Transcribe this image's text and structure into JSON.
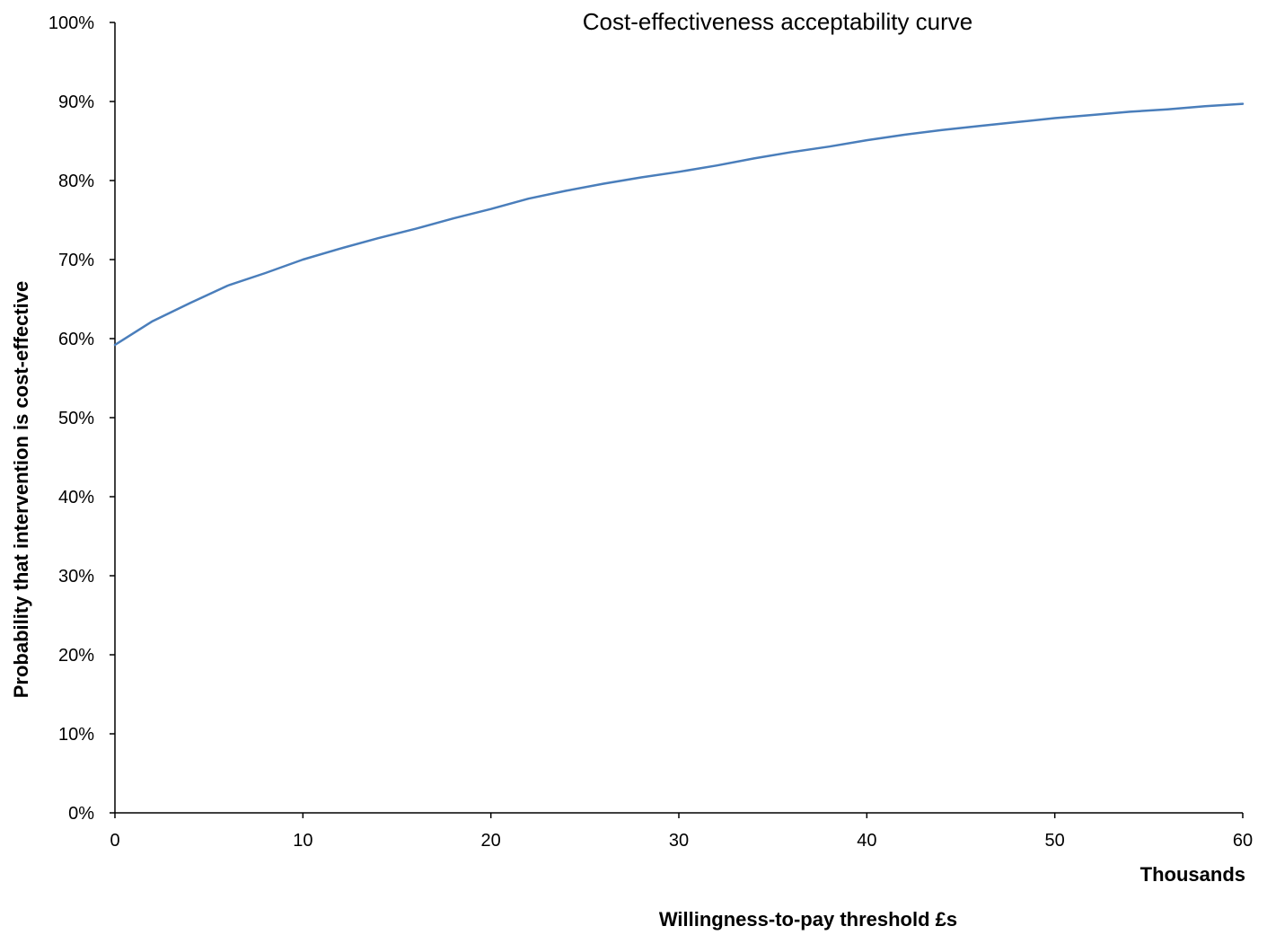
{
  "chart_data": {
    "type": "line",
    "title": "Cost-effectiveness acceptability curve",
    "xlabel": "Willingness-to-pay threshold £s",
    "xunit_label": "Thousands",
    "ylabel": "Probability that intervention is cost-effective",
    "xlim": [
      0,
      60
    ],
    "ylim": [
      0,
      1
    ],
    "x_ticks": [
      "0",
      "10",
      "20",
      "30",
      "40",
      "50",
      "60"
    ],
    "y_ticks": [
      "0%",
      "10%",
      "20%",
      "30%",
      "40%",
      "50%",
      "60%",
      "70%",
      "80%",
      "90%",
      "100%"
    ],
    "grid": false,
    "legend": "none",
    "line_color": "#4a7ebb",
    "series": [
      {
        "x": [
          0,
          2,
          4,
          6,
          8,
          10,
          12,
          14,
          16,
          18,
          20,
          22,
          24,
          26,
          28,
          30,
          32,
          34,
          36,
          38,
          40,
          42,
          44,
          46,
          48,
          50,
          52,
          54,
          56,
          58,
          60
        ],
        "y": [
          0.592,
          0.622,
          0.645,
          0.667,
          0.683,
          0.7,
          0.714,
          0.727,
          0.739,
          0.752,
          0.764,
          0.777,
          0.787,
          0.796,
          0.804,
          0.811,
          0.819,
          0.828,
          0.836,
          0.843,
          0.851,
          0.858,
          0.864,
          0.869,
          0.874,
          0.879,
          0.883,
          0.887,
          0.89,
          0.894,
          0.897
        ]
      }
    ]
  }
}
